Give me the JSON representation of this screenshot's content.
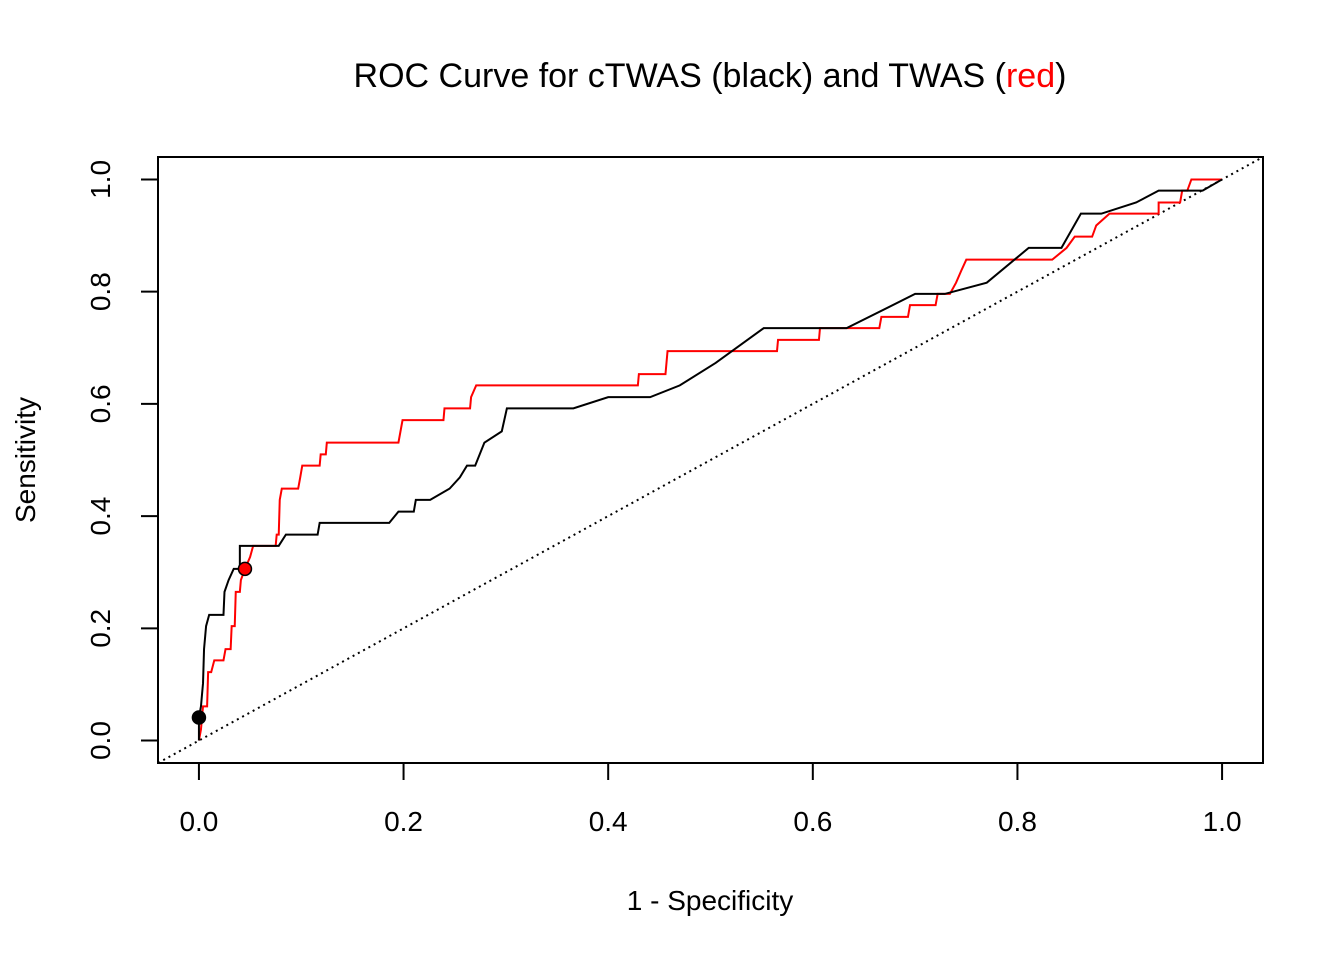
{
  "chart_data": {
    "type": "line",
    "title": {
      "prefix": "ROC Curve for cTWAS (black) and TWAS (",
      "highlight": "red",
      "suffix": ")"
    },
    "xlabel": "1 - Specificity",
    "ylabel": "Sensitivity",
    "xlim": [
      -0.04,
      1.04
    ],
    "ylim": [
      -0.04,
      1.04
    ],
    "x_ticks": [
      0.0,
      0.2,
      0.4,
      0.6,
      0.8,
      1.0
    ],
    "y_ticks": [
      0.0,
      0.2,
      0.4,
      0.6,
      0.8,
      1.0
    ],
    "x_tick_labels": [
      "0.0",
      "0.2",
      "0.4",
      "0.6",
      "0.8",
      "1.0"
    ],
    "y_tick_labels": [
      "0.0",
      "0.2",
      "0.4",
      "0.6",
      "0.8",
      "1.0"
    ],
    "grid": false,
    "reference_line": {
      "from": [
        0,
        0
      ],
      "to": [
        1,
        1
      ],
      "style": "dotted",
      "color": "#000000"
    },
    "series": [
      {
        "color": "#000000",
        "points": [
          [
            0.0,
            0.0
          ],
          [
            0.0,
            0.041
          ],
          [
            0.002,
            0.061
          ],
          [
            0.003,
            0.082
          ],
          [
            0.004,
            0.102
          ],
          [
            0.005,
            0.163
          ],
          [
            0.007,
            0.204
          ],
          [
            0.01,
            0.224
          ],
          [
            0.024,
            0.224
          ],
          [
            0.025,
            0.265
          ],
          [
            0.029,
            0.286
          ],
          [
            0.034,
            0.306
          ],
          [
            0.04,
            0.306
          ],
          [
            0.04,
            0.347
          ],
          [
            0.078,
            0.347
          ],
          [
            0.085,
            0.367
          ],
          [
            0.116,
            0.367
          ],
          [
            0.118,
            0.388
          ],
          [
            0.186,
            0.388
          ],
          [
            0.195,
            0.408
          ],
          [
            0.21,
            0.408
          ],
          [
            0.212,
            0.429
          ],
          [
            0.226,
            0.429
          ],
          [
            0.245,
            0.449
          ],
          [
            0.255,
            0.469
          ],
          [
            0.262,
            0.49
          ],
          [
            0.27,
            0.49
          ],
          [
            0.279,
            0.531
          ],
          [
            0.296,
            0.551
          ],
          [
            0.301,
            0.592
          ],
          [
            0.366,
            0.592
          ],
          [
            0.4,
            0.612
          ],
          [
            0.441,
            0.612
          ],
          [
            0.47,
            0.633
          ],
          [
            0.505,
            0.673
          ],
          [
            0.552,
            0.735
          ],
          [
            0.633,
            0.735
          ],
          [
            0.7,
            0.796
          ],
          [
            0.729,
            0.796
          ],
          [
            0.77,
            0.816
          ],
          [
            0.811,
            0.878
          ],
          [
            0.843,
            0.878
          ],
          [
            0.862,
            0.939
          ],
          [
            0.882,
            0.939
          ],
          [
            0.916,
            0.959
          ],
          [
            0.938,
            0.98
          ],
          [
            0.981,
            0.98
          ],
          [
            1.0,
            1.0
          ]
        ],
        "marker": {
          "x": 0.0,
          "y": 0.041,
          "color": "#000000"
        }
      },
      {
        "color": "#ff0000",
        "points": [
          [
            0.0,
            0.0
          ],
          [
            0.002,
            0.02
          ],
          [
            0.003,
            0.041
          ],
          [
            0.004,
            0.061
          ],
          [
            0.008,
            0.061
          ],
          [
            0.009,
            0.122
          ],
          [
            0.012,
            0.122
          ],
          [
            0.015,
            0.143
          ],
          [
            0.024,
            0.143
          ],
          [
            0.026,
            0.163
          ],
          [
            0.031,
            0.163
          ],
          [
            0.032,
            0.204
          ],
          [
            0.035,
            0.204
          ],
          [
            0.036,
            0.265
          ],
          [
            0.04,
            0.265
          ],
          [
            0.041,
            0.286
          ],
          [
            0.045,
            0.306
          ],
          [
            0.05,
            0.327
          ],
          [
            0.053,
            0.347
          ],
          [
            0.075,
            0.347
          ],
          [
            0.076,
            0.367
          ],
          [
            0.078,
            0.367
          ],
          [
            0.079,
            0.429
          ],
          [
            0.081,
            0.449
          ],
          [
            0.097,
            0.449
          ],
          [
            0.099,
            0.469
          ],
          [
            0.101,
            0.49
          ],
          [
            0.118,
            0.49
          ],
          [
            0.119,
            0.51
          ],
          [
            0.124,
            0.51
          ],
          [
            0.125,
            0.531
          ],
          [
            0.195,
            0.531
          ],
          [
            0.199,
            0.571
          ],
          [
            0.239,
            0.571
          ],
          [
            0.24,
            0.592
          ],
          [
            0.265,
            0.592
          ],
          [
            0.266,
            0.612
          ],
          [
            0.271,
            0.633
          ],
          [
            0.429,
            0.633
          ],
          [
            0.43,
            0.653
          ],
          [
            0.456,
            0.653
          ],
          [
            0.458,
            0.694
          ],
          [
            0.565,
            0.694
          ],
          [
            0.566,
            0.714
          ],
          [
            0.606,
            0.714
          ],
          [
            0.607,
            0.735
          ],
          [
            0.665,
            0.735
          ],
          [
            0.667,
            0.755
          ],
          [
            0.693,
            0.755
          ],
          [
            0.695,
            0.776
          ],
          [
            0.72,
            0.776
          ],
          [
            0.722,
            0.796
          ],
          [
            0.734,
            0.796
          ],
          [
            0.74,
            0.816
          ],
          [
            0.745,
            0.837
          ],
          [
            0.75,
            0.857
          ],
          [
            0.834,
            0.857
          ],
          [
            0.848,
            0.878
          ],
          [
            0.856,
            0.898
          ],
          [
            0.873,
            0.898
          ],
          [
            0.877,
            0.918
          ],
          [
            0.89,
            0.939
          ],
          [
            0.938,
            0.939
          ],
          [
            0.938,
            0.959
          ],
          [
            0.946,
            0.959
          ],
          [
            0.951,
            0.959
          ],
          [
            0.959,
            0.959
          ],
          [
            0.961,
            0.98
          ],
          [
            0.966,
            0.98
          ],
          [
            0.97,
            1.0
          ],
          [
            1.0,
            1.0
          ]
        ],
        "marker": {
          "x": 0.045,
          "y": 0.306,
          "color": "#ff0000"
        }
      }
    ]
  }
}
